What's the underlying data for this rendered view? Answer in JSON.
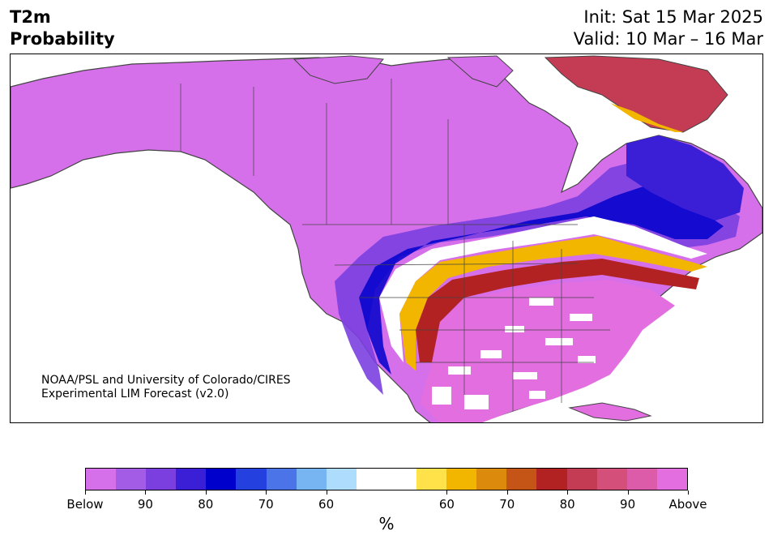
{
  "header": {
    "title_line1": "T2m",
    "title_line2": "Probability",
    "init": "Init: Sat 15 Mar 2025",
    "valid": "Valid: 10 Mar – 16 Mar"
  },
  "map": {
    "credit_line1": "NOAA/PSL and University of Colorado/CIRES",
    "credit_line2": "Experimental LIM Forecast (v2.0)"
  },
  "colorbar": {
    "colors": [
      "#d670ea",
      "#a35ce6",
      "#7b3fe0",
      "#3b1fd6",
      "#0000cc",
      "#2440de",
      "#4a74e8",
      "#76b4f2",
      "#aedcfc",
      "#ffffff",
      "#ffffff",
      "#ffe14a",
      "#f2b600",
      "#dc8a0c",
      "#c45516",
      "#b22222",
      "#c43c54",
      "#d4507a",
      "#dc5caa",
      "#e26ee0"
    ],
    "ticks": [
      "Below",
      "90",
      "80",
      "70",
      "60",
      "60",
      "70",
      "80",
      "90",
      "Above"
    ],
    "unit": "%"
  },
  "palette": {
    "below_strong": "#d670ea",
    "above_strong": "#e26ee0",
    "deep_blue": "#0000cc",
    "dark_red": "#b22222"
  }
}
